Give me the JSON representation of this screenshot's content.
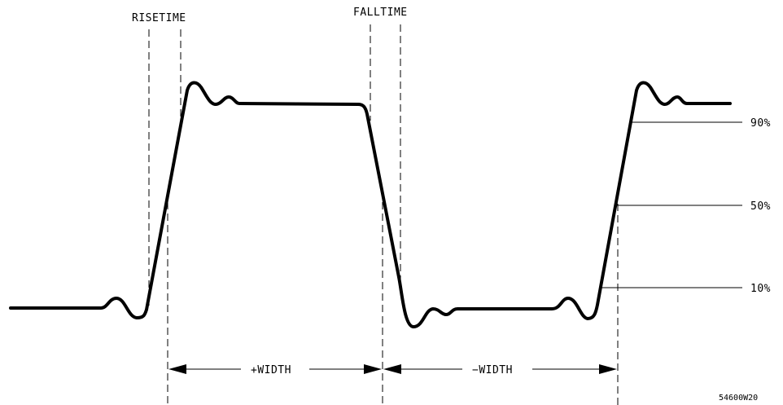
{
  "labels": {
    "risetime": "RISETIME",
    "falltime": "FALLTIME",
    "plus_width": "+WIDTH",
    "minus_width": "−WIDTH",
    "level_90": "90%",
    "level_50": "50%",
    "level_10": "10%",
    "figure_id": "54600W20"
  }
}
